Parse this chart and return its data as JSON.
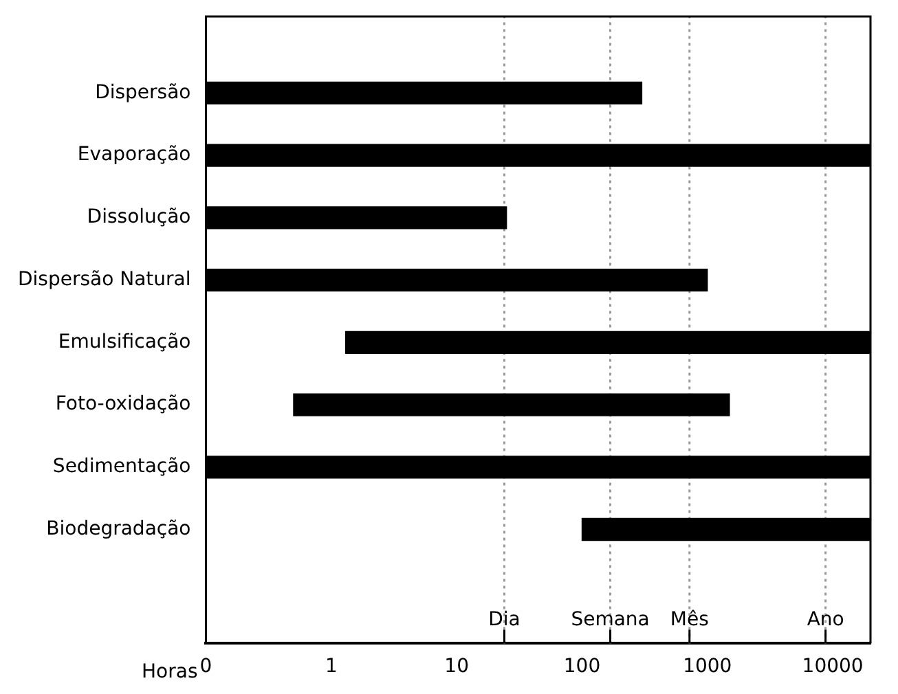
{
  "chart_data": {
    "type": "bar",
    "orientation": "horizontal",
    "log": "x",
    "categories": [
      "Dispersão",
      "Evaporação",
      "Dissolução",
      "Dispersão Natural",
      "Emulsificação",
      "Foto-oxidação",
      "Sedimentação",
      "Biodegradação"
    ],
    "base": [
      0.1,
      0.1,
      0.1,
      0.1,
      1.3,
      0.5,
      0.1,
      100
    ],
    "values": [
      299.9,
      19999.9,
      24.9,
      999.9,
      19998.7,
      1499.5,
      19999.9,
      19900
    ],
    "color": "#000000",
    "xlim": [
      0.1,
      20000
    ],
    "xticks": [
      {
        "value": 0.1,
        "label": "0"
      },
      1,
      10,
      100,
      1000,
      10000
    ],
    "ref_lines": [
      {
        "axis": "x",
        "value": 24,
        "label": "Dia",
        "color": "#999999",
        "line_style": "dotted"
      },
      {
        "axis": "x",
        "value": 168,
        "label": "Semana",
        "color": "#999999",
        "line_style": "dotted"
      },
      {
        "axis": "x",
        "value": 720,
        "label": "Mês",
        "color": "#999999",
        "line_style": "dotted"
      },
      {
        "axis": "x",
        "value": 8760,
        "label": "Ano",
        "color": "#999999",
        "line_style": "dotted"
      }
    ],
    "xlabel": "Horas",
    "grid": false,
    "legend": false
  }
}
